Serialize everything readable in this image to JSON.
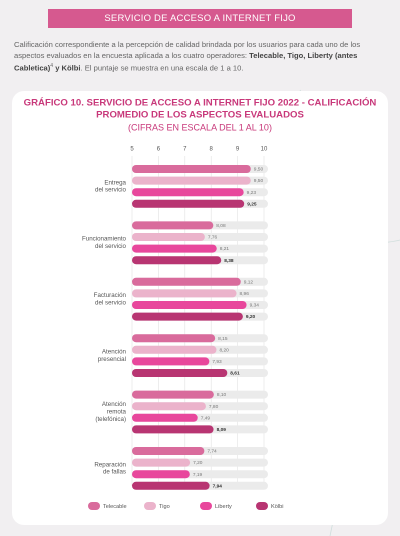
{
  "header": {
    "title": "SERVICIO DE ACCESO A INTERNET FIJO"
  },
  "intro": {
    "parts": [
      "Calificación correspondiente a la percepción de calidad brindada por los usuarios para cada uno de los aspectos evaluados en la encuesta aplicada a los cuatro operadores: ",
      "Telecable, Tigo, Liberty (antes Cabletica)",
      "4",
      " y Kölbi",
      ". El puntaje se muestra en una escala de 1 a 10."
    ]
  },
  "chart_data": {
    "type": "bar",
    "orientation": "horizontal",
    "title": [
      "GRÁFICO 10. SERVICIO DE ACCESO A INTERNET FIJO 2022 - CALIFICACIÓN",
      "PROMEDIO DE LOS ASPECTOS EVALUADOS"
    ],
    "subtitle": "(CIFRAS EN ESCALA DEL 1 AL 10)",
    "categories": [
      [
        "Entrega",
        "del servicio"
      ],
      [
        "Funcionamiento",
        "del servicio"
      ],
      [
        "Facturación",
        "del servicio"
      ],
      [
        "Atención",
        "presencial"
      ],
      [
        "Atención",
        "remota",
        "(telefónica)"
      ],
      [
        "Reparación",
        "de fallas"
      ]
    ],
    "series": [
      {
        "name": "Telecable",
        "color": "#d96b9c",
        "values": [
          9.5,
          8.08,
          9.12,
          8.15,
          8.1,
          7.74
        ],
        "value_labels": [
          "9,50",
          "8,08",
          "9,12",
          "8,15",
          "8,10",
          "7,74"
        ]
      },
      {
        "name": "Tigo",
        "color": "#ebb3cb",
        "values": [
          9.5,
          7.76,
          8.96,
          8.2,
          7.8,
          7.2
        ],
        "value_labels": [
          "9,50",
          "7,76",
          "8,96",
          "8,20",
          "7,80",
          "7,20"
        ]
      },
      {
        "name": "Liberty",
        "color": "#e8479c",
        "values": [
          9.23,
          8.21,
          9.34,
          7.93,
          7.49,
          7.19
        ],
        "value_labels": [
          "9,23",
          "8,21",
          "9,34",
          "7,93",
          "7,49",
          "7,19"
        ]
      },
      {
        "name": "Kölbi",
        "color": "#b83572",
        "values": [
          9.25,
          8.38,
          9.2,
          8.61,
          8.09,
          7.94
        ],
        "value_labels": [
          "9,25",
          "8,38",
          "9,20",
          "8,61",
          "8,09",
          "7,94"
        ]
      }
    ],
    "xlim": [
      5,
      10
    ],
    "xticks": [
      5,
      6,
      7,
      8,
      9,
      10
    ],
    "grid": true
  }
}
